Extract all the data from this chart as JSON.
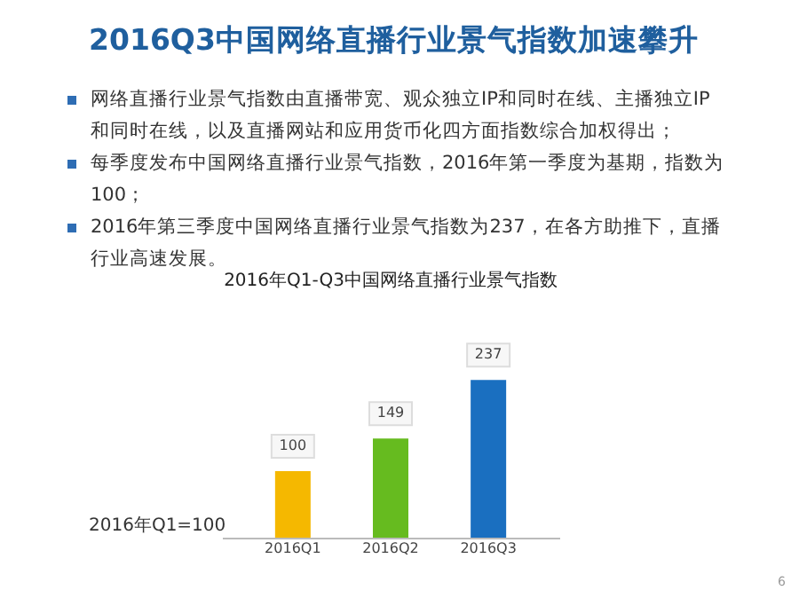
{
  "chart_data": {
    "type": "bar",
    "title": "2016Q3中国网络直播行业景气指数加速攀升",
    "subtitle": "2016年Q1-Q3中国网络直播行业景气指数",
    "categories": [
      "2016Q1",
      "2016Q2",
      "2016Q3"
    ],
    "values": [
      100,
      149,
      237
    ],
    "colors": [
      "#f5b800",
      "#66bb1f",
      "#1a6fc0"
    ],
    "data_labels": true,
    "annotations": [
      "网络直播行业景气指数由直播带宽、观众独立IP和同时在线、主播独立IP和同时在线，以及直播网站和应用货币化四方面指数综合加权得出；",
      "每季度发布中国网络直播行业景气指数，2016年第一季度为基期，指数为100；",
      "2016年第三季度中国网络直播行业景气指数为237，在各方助推下，直播行业高速发展。",
      "2016年Q1=100",
      "6"
    ]
  }
}
